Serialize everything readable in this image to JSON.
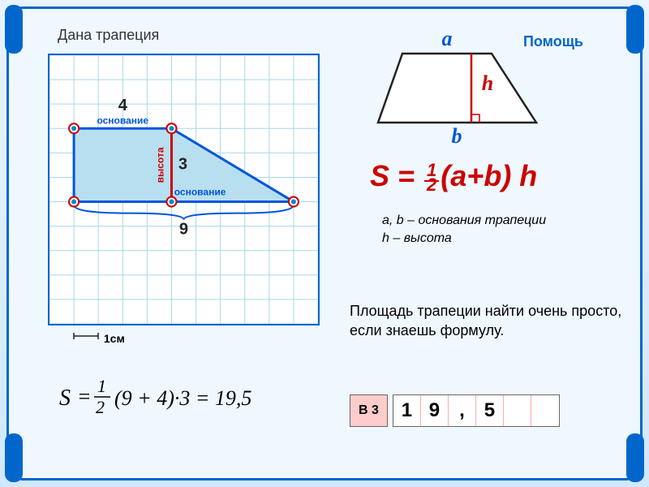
{
  "title": "Дана трапеция",
  "help_link": "Помощь",
  "grid": {
    "scale_label": "1см",
    "top_base_label": "основание",
    "bottom_base_label": "основание",
    "height_label": "высота",
    "top_value": "4",
    "height_value": "3",
    "bottom_value": "9",
    "grid_color": "#a8d8e8",
    "shape_fill": "#b8dff0",
    "shape_stroke": "#0055dd",
    "height_color": "#cc0000",
    "vertex_fill": "#0088cc",
    "label_color": "#0055dd",
    "value_color": "#222222",
    "cell_size": 30,
    "trapezoid_points": [
      [
        1,
        3
      ],
      [
        5,
        3
      ],
      [
        10,
        6
      ],
      [
        1,
        6
      ]
    ],
    "height_line": [
      [
        5,
        3
      ],
      [
        5,
        6
      ]
    ]
  },
  "ref_diagram": {
    "a_label": "a",
    "b_label": "b",
    "h_label": "h",
    "a_color": "#0055dd",
    "b_color": "#0055dd",
    "h_color": "#cc0000",
    "stroke": "#222222"
  },
  "formula": {
    "text_prefix": "S = ",
    "frac_num": "1",
    "frac_den": "2",
    "text_suffix": "(a+b) h",
    "color": "#cc0000"
  },
  "formula_desc": {
    "line1": "a, b – основания трапеции",
    "line2": "h – высота"
  },
  "explanation": "Площадь трапеции найти очень просто, если знаешь формулу.",
  "calculation": {
    "result": "19,5",
    "values": {
      "b1": "9",
      "b2": "4",
      "h": "3"
    }
  },
  "answer": {
    "label": "В 3",
    "cells": [
      "1",
      "9",
      ",",
      "5",
      "",
      ""
    ]
  },
  "colors": {
    "frame": "#0066cc",
    "bg_top": "#e8f4ff",
    "bg_bottom": "#d0e8ff",
    "answer_label_bg": "#ffcccc"
  }
}
